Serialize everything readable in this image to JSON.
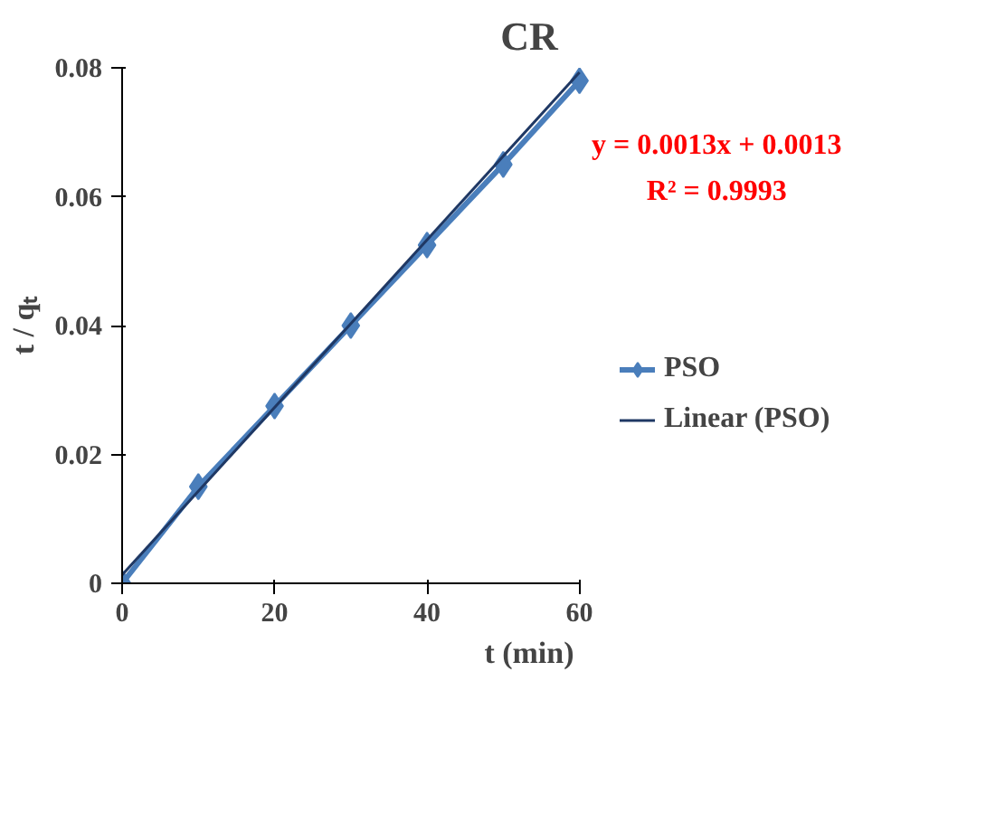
{
  "chart_data": {
    "type": "line",
    "title": "CR",
    "xlabel": "t (min)",
    "ylabel": "t / qₜ",
    "xlim": [
      0,
      60
    ],
    "xticks": [
      0,
      20,
      40,
      60
    ],
    "ylim": [
      0,
      0.08
    ],
    "yticks": [
      0,
      0.02,
      0.04,
      0.06,
      0.08
    ],
    "series": [
      {
        "name": "PSO",
        "color": "#4a7ebb",
        "marker": "diamond",
        "x": [
          0,
          10,
          20,
          30,
          40,
          50,
          60
        ],
        "values": [
          0,
          0.015,
          0.0275,
          0.04,
          0.0525,
          0.065,
          0.078
        ]
      },
      {
        "name": "Linear (PSO)",
        "color": "#1f3864",
        "marker": "none",
        "x": [
          0,
          60
        ],
        "values": [
          0.0013,
          0.0793
        ]
      }
    ],
    "annotations": [
      "y = 0.0013x + 0.0013",
      "R² = 0.9993"
    ],
    "grid": false,
    "legend": "right"
  }
}
